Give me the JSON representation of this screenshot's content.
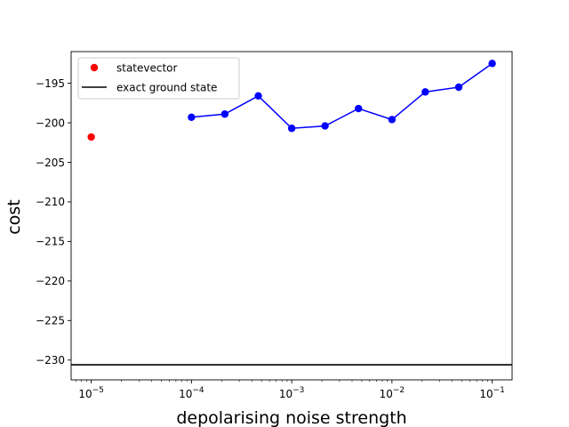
{
  "chart_data": {
    "type": "line",
    "xlabel": "depolarising noise strength",
    "ylabel": "cost",
    "xscale": "log",
    "xlim": [
      6.3e-06,
      0.158
    ],
    "ylim": [
      -232.5,
      -191.0
    ],
    "grid": false,
    "legend_position": "top-left",
    "x_ticks": [
      {
        "value": 1e-05,
        "base": "10",
        "exp": "−5"
      },
      {
        "value": 0.0001,
        "base": "10",
        "exp": "−4"
      },
      {
        "value": 0.001,
        "base": "10",
        "exp": "−3"
      },
      {
        "value": 0.01,
        "base": "10",
        "exp": "−2"
      },
      {
        "value": 0.1,
        "base": "10",
        "exp": "−1"
      }
    ],
    "y_ticks": [
      {
        "value": -195,
        "label": "−195"
      },
      {
        "value": -200,
        "label": "−200"
      },
      {
        "value": -205,
        "label": "−205"
      },
      {
        "value": -210,
        "label": "−210"
      },
      {
        "value": -215,
        "label": "−215"
      },
      {
        "value": -220,
        "label": "−220"
      },
      {
        "value": -225,
        "label": "−225"
      },
      {
        "value": -230,
        "label": "−230"
      }
    ],
    "series": [
      {
        "name": "statevector",
        "style": "marker",
        "color": "#ff0000",
        "points": [
          {
            "x": 1e-05,
            "y": -201.8
          }
        ]
      },
      {
        "name": "",
        "style": "line+marker",
        "color": "#0000ff",
        "points": [
          {
            "x": 0.0001,
            "y": -199.3
          },
          {
            "x": 0.000215,
            "y": -198.9
          },
          {
            "x": 0.000464,
            "y": -196.6
          },
          {
            "x": 0.001,
            "y": -200.7
          },
          {
            "x": 0.00215,
            "y": -200.4
          },
          {
            "x": 0.00464,
            "y": -198.2
          },
          {
            "x": 0.01,
            "y": -199.6
          },
          {
            "x": 0.0215,
            "y": -196.1
          },
          {
            "x": 0.0464,
            "y": -195.5
          },
          {
            "x": 0.1,
            "y": -192.5
          }
        ]
      },
      {
        "name": "exact ground state",
        "style": "hline",
        "color": "#000000",
        "y": -230.6
      }
    ],
    "legend": [
      {
        "label": "statevector",
        "kind": "marker",
        "color": "#ff0000"
      },
      {
        "label": "exact ground state",
        "kind": "line",
        "color": "#000000"
      }
    ]
  }
}
